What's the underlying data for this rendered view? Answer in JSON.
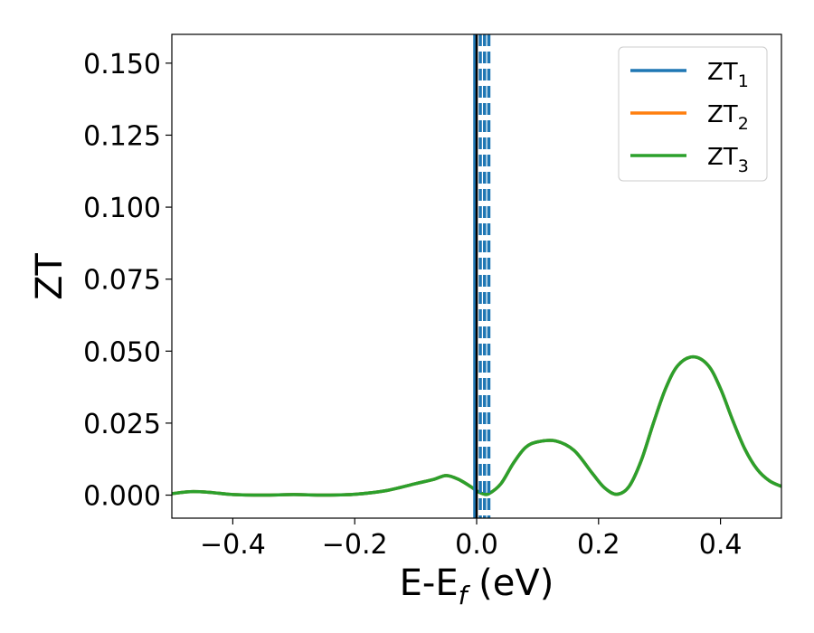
{
  "chart_data": {
    "type": "line",
    "xlabel": "E-E_f (eV)",
    "xlabel_parts": {
      "main": "E-E",
      "sub": "f",
      "unit": " (eV)"
    },
    "ylabel": "ZT",
    "xlim": [
      -0.5,
      0.5
    ],
    "ylim": [
      -0.008,
      0.16
    ],
    "xticks": [
      -0.4,
      -0.2,
      0.0,
      0.2,
      0.4
    ],
    "xtick_labels": [
      "−0.4",
      "−0.2",
      "0.0",
      "0.2",
      "0.4"
    ],
    "yticks": [
      0.0,
      0.025,
      0.05,
      0.075,
      0.1,
      0.125,
      0.15
    ],
    "ytick_labels": [
      "0.000",
      "0.025",
      "0.050",
      "0.075",
      "0.100",
      "0.125",
      "0.150"
    ],
    "grid": false,
    "legend_position": "top-right",
    "series": [
      {
        "name": "ZT1",
        "label_main": "ZT",
        "label_sub": "1",
        "color": "#1f77b4",
        "x": [
          -0.5,
          -0.47,
          -0.44,
          -0.4,
          -0.35,
          -0.3,
          -0.25,
          -0.2,
          -0.15,
          -0.1,
          -0.07,
          -0.05,
          -0.03,
          -0.01,
          0.0,
          0.01,
          0.02,
          0.04,
          0.06,
          0.08,
          0.1,
          0.13,
          0.16,
          0.19,
          0.21,
          0.23,
          0.25,
          0.27,
          0.29,
          0.31,
          0.33,
          0.355,
          0.38,
          0.4,
          0.42,
          0.44,
          0.46,
          0.48,
          0.5
        ],
        "y": [
          0.0005,
          0.0012,
          0.001,
          0.0002,
          0.0,
          0.0002,
          0.0,
          0.0003,
          0.0015,
          0.004,
          0.0055,
          0.0068,
          0.0055,
          0.003,
          0.0015,
          0.0005,
          0.0005,
          0.004,
          0.011,
          0.0165,
          0.0185,
          0.0188,
          0.0155,
          0.0075,
          0.0025,
          0.0003,
          0.003,
          0.012,
          0.025,
          0.037,
          0.045,
          0.048,
          0.045,
          0.037,
          0.026,
          0.016,
          0.009,
          0.005,
          0.003
        ]
      },
      {
        "name": "ZT2",
        "label_main": "ZT",
        "label_sub": "2",
        "color": "#ff7f0e",
        "x": [
          -0.5,
          -0.47,
          -0.44,
          -0.4,
          -0.35,
          -0.3,
          -0.25,
          -0.2,
          -0.15,
          -0.1,
          -0.07,
          -0.05,
          -0.03,
          -0.01,
          0.0,
          0.01,
          0.02,
          0.04,
          0.06,
          0.08,
          0.1,
          0.13,
          0.16,
          0.19,
          0.21,
          0.23,
          0.25,
          0.27,
          0.29,
          0.31,
          0.33,
          0.355,
          0.38,
          0.4,
          0.42,
          0.44,
          0.46,
          0.48,
          0.5
        ],
        "y": [
          0.0005,
          0.0012,
          0.001,
          0.0002,
          0.0,
          0.0002,
          0.0,
          0.0003,
          0.0015,
          0.004,
          0.0055,
          0.0068,
          0.0055,
          0.003,
          0.0015,
          0.0005,
          0.0005,
          0.004,
          0.011,
          0.0165,
          0.0185,
          0.0188,
          0.0155,
          0.0075,
          0.0025,
          0.0003,
          0.003,
          0.012,
          0.025,
          0.037,
          0.045,
          0.048,
          0.045,
          0.037,
          0.026,
          0.016,
          0.009,
          0.005,
          0.003
        ]
      },
      {
        "name": "ZT3",
        "label_main": "ZT",
        "label_sub": "3",
        "color": "#2ca02c",
        "x": [
          -0.5,
          -0.47,
          -0.44,
          -0.4,
          -0.35,
          -0.3,
          -0.25,
          -0.2,
          -0.15,
          -0.1,
          -0.07,
          -0.05,
          -0.03,
          -0.01,
          0.0,
          0.01,
          0.02,
          0.04,
          0.06,
          0.08,
          0.1,
          0.13,
          0.16,
          0.19,
          0.21,
          0.23,
          0.25,
          0.27,
          0.29,
          0.31,
          0.33,
          0.355,
          0.38,
          0.4,
          0.42,
          0.44,
          0.46,
          0.48,
          0.5
        ],
        "y": [
          0.0005,
          0.0012,
          0.001,
          0.0002,
          0.0,
          0.0002,
          0.0,
          0.0003,
          0.0015,
          0.004,
          0.0055,
          0.0068,
          0.0055,
          0.003,
          0.0015,
          0.0005,
          0.0005,
          0.004,
          0.011,
          0.0165,
          0.0185,
          0.0188,
          0.0155,
          0.0075,
          0.0025,
          0.0003,
          0.003,
          0.012,
          0.025,
          0.037,
          0.045,
          0.048,
          0.045,
          0.037,
          0.026,
          0.016,
          0.009,
          0.005,
          0.003
        ]
      }
    ],
    "vertical_lines": [
      {
        "x": -0.003,
        "color": "#1f77b4",
        "style": "solid"
      },
      {
        "x": 0.0,
        "color": "#000000",
        "style": "solid"
      },
      {
        "x": 0.006,
        "color": "#1f77b4",
        "style": "dashed"
      },
      {
        "x": 0.013,
        "color": "#1f77b4",
        "style": "dashed"
      },
      {
        "x": 0.02,
        "color": "#1f77b4",
        "style": "dashed"
      }
    ]
  }
}
